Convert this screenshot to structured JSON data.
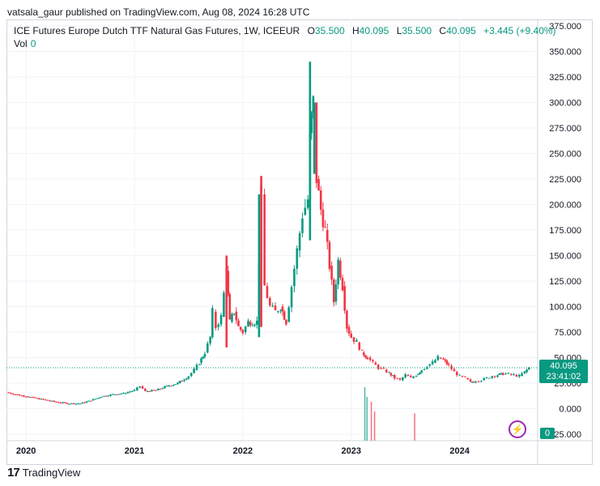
{
  "attribution": "vatsala_gaur published on TradingView.com, Aug 08, 2024 16:28 UTC",
  "legend": {
    "symbol": "ICE Futures Europe Dutch TTF Natural Gas Futures, 1W, ICEEUR",
    "open_label": "O",
    "open": "35.500",
    "high_label": "H",
    "high": "40.095",
    "low_label": "L",
    "low": "35.500",
    "close_label": "C",
    "close": "40.095",
    "change": "+3.445 (+9.40%)"
  },
  "volume": {
    "label": "Vol",
    "value": "0"
  },
  "price_badge": {
    "price": "40.095",
    "countdown": "23:41:02"
  },
  "volume_badge": "0",
  "footer": {
    "logo": "17",
    "brand": "TradingView"
  },
  "icons": {
    "flash": "lightning-icon"
  },
  "colors": {
    "up": "#089981",
    "down": "#f23645",
    "grid": "#f0f3fa",
    "axis_text": "#131722"
  },
  "chart_data": {
    "type": "candlestick",
    "title": "ICE Futures Europe Dutch TTF Natural Gas Futures, 1W, ICEEUR",
    "y_axis_ticks": [
      "375.000",
      "350.000",
      "325.000",
      "300.000",
      "275.000",
      "250.000",
      "225.000",
      "200.000",
      "175.000",
      "150.000",
      "125.000",
      "100.000",
      "75.000",
      "50.000",
      "25.000",
      "0.000",
      "-25.000"
    ],
    "y_tick_values": [
      375,
      350,
      325,
      300,
      275,
      250,
      225,
      200,
      175,
      150,
      125,
      100,
      75,
      50,
      25,
      0,
      -25
    ],
    "x_axis_ticks": [
      "2020",
      "2021",
      "2022",
      "2023",
      "2024"
    ],
    "x_tick_values": [
      2020.0,
      2021.0,
      2022.0,
      2023.0,
      2024.0
    ],
    "ylim": [
      -25,
      375
    ],
    "xlim": [
      2019.82,
      2024.72
    ],
    "last_price": 40.095,
    "series": [
      {
        "name": "weekly_close_path",
        "points": [
          [
            2019.82,
            16
          ],
          [
            2019.9,
            14
          ],
          [
            2020.0,
            12
          ],
          [
            2020.1,
            10
          ],
          [
            2020.2,
            8
          ],
          [
            2020.3,
            6
          ],
          [
            2020.4,
            5
          ],
          [
            2020.5,
            5
          ],
          [
            2020.6,
            8
          ],
          [
            2020.7,
            12
          ],
          [
            2020.8,
            14
          ],
          [
            2020.9,
            15
          ],
          [
            2021.0,
            18
          ],
          [
            2021.05,
            22
          ],
          [
            2021.1,
            17
          ],
          [
            2021.2,
            18
          ],
          [
            2021.3,
            22
          ],
          [
            2021.4,
            25
          ],
          [
            2021.5,
            32
          ],
          [
            2021.55,
            38
          ],
          [
            2021.6,
            45
          ],
          [
            2021.65,
            55
          ],
          [
            2021.7,
            70
          ],
          [
            2021.72,
            95
          ],
          [
            2021.75,
            80
          ],
          [
            2021.8,
            90
          ],
          [
            2021.85,
            135
          ],
          [
            2021.88,
            85
          ],
          [
            2021.92,
            95
          ],
          [
            2021.96,
            80
          ],
          [
            2022.0,
            75
          ],
          [
            2022.05,
            85
          ],
          [
            2022.13,
            85
          ],
          [
            2022.17,
            210
          ],
          [
            2022.2,
            120
          ],
          [
            2022.25,
            100
          ],
          [
            2022.3,
            95
          ],
          [
            2022.35,
            100
          ],
          [
            2022.4,
            85
          ],
          [
            2022.45,
            120
          ],
          [
            2022.5,
            155
          ],
          [
            2022.55,
            190
          ],
          [
            2022.6,
            205
          ],
          [
            2022.62,
            270
          ],
          [
            2022.65,
            300
          ],
          [
            2022.68,
            225
          ],
          [
            2022.72,
            195
          ],
          [
            2022.76,
            175
          ],
          [
            2022.8,
            140
          ],
          [
            2022.84,
            105
          ],
          [
            2022.88,
            145
          ],
          [
            2022.92,
            120
          ],
          [
            2022.96,
            80
          ],
          [
            2023.0,
            70
          ],
          [
            2023.05,
            65
          ],
          [
            2023.1,
            55
          ],
          [
            2023.15,
            50
          ],
          [
            2023.2,
            45
          ],
          [
            2023.25,
            40
          ],
          [
            2023.3,
            38
          ],
          [
            2023.35,
            35
          ],
          [
            2023.4,
            30
          ],
          [
            2023.45,
            28
          ],
          [
            2023.5,
            33
          ],
          [
            2023.55,
            30
          ],
          [
            2023.6,
            33
          ],
          [
            2023.65,
            38
          ],
          [
            2023.7,
            42
          ],
          [
            2023.75,
            45
          ],
          [
            2023.8,
            50
          ],
          [
            2023.85,
            48
          ],
          [
            2023.9,
            42
          ],
          [
            2023.95,
            36
          ],
          [
            2024.0,
            32
          ],
          [
            2024.05,
            30
          ],
          [
            2024.1,
            26
          ],
          [
            2024.15,
            27
          ],
          [
            2024.2,
            28
          ],
          [
            2024.25,
            30
          ],
          [
            2024.3,
            32
          ],
          [
            2024.35,
            33
          ],
          [
            2024.4,
            34
          ],
          [
            2024.45,
            34
          ],
          [
            2024.5,
            33
          ],
          [
            2024.55,
            32
          ],
          [
            2024.6,
            36
          ],
          [
            2024.64,
            40.095
          ]
        ]
      }
    ],
    "volume_spikes": [
      {
        "x": 2023.12,
        "value": 0.55,
        "color": "#089981"
      },
      {
        "x": 2023.14,
        "value": 0.45,
        "color": "#089981"
      },
      {
        "x": 2023.18,
        "value": 0.4,
        "color": "#f23645"
      },
      {
        "x": 2023.21,
        "value": 0.3,
        "color": "#f23645"
      },
      {
        "x": 2023.58,
        "value": 0.28,
        "color": "#f23645"
      }
    ]
  }
}
